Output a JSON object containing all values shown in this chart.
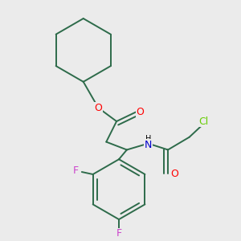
{
  "bg_color": "#ebebeb",
  "bond_color": "#2d6b4a",
  "atom_colors": {
    "O": "#ff0000",
    "N": "#0000cc",
    "F": "#cc44cc",
    "Cl": "#66cc00"
  },
  "bond_width": 1.4,
  "fig_size": [
    3.0,
    3.0
  ],
  "dpi": 100,
  "xlim": [
    0,
    300
  ],
  "ylim": [
    0,
    300
  ]
}
